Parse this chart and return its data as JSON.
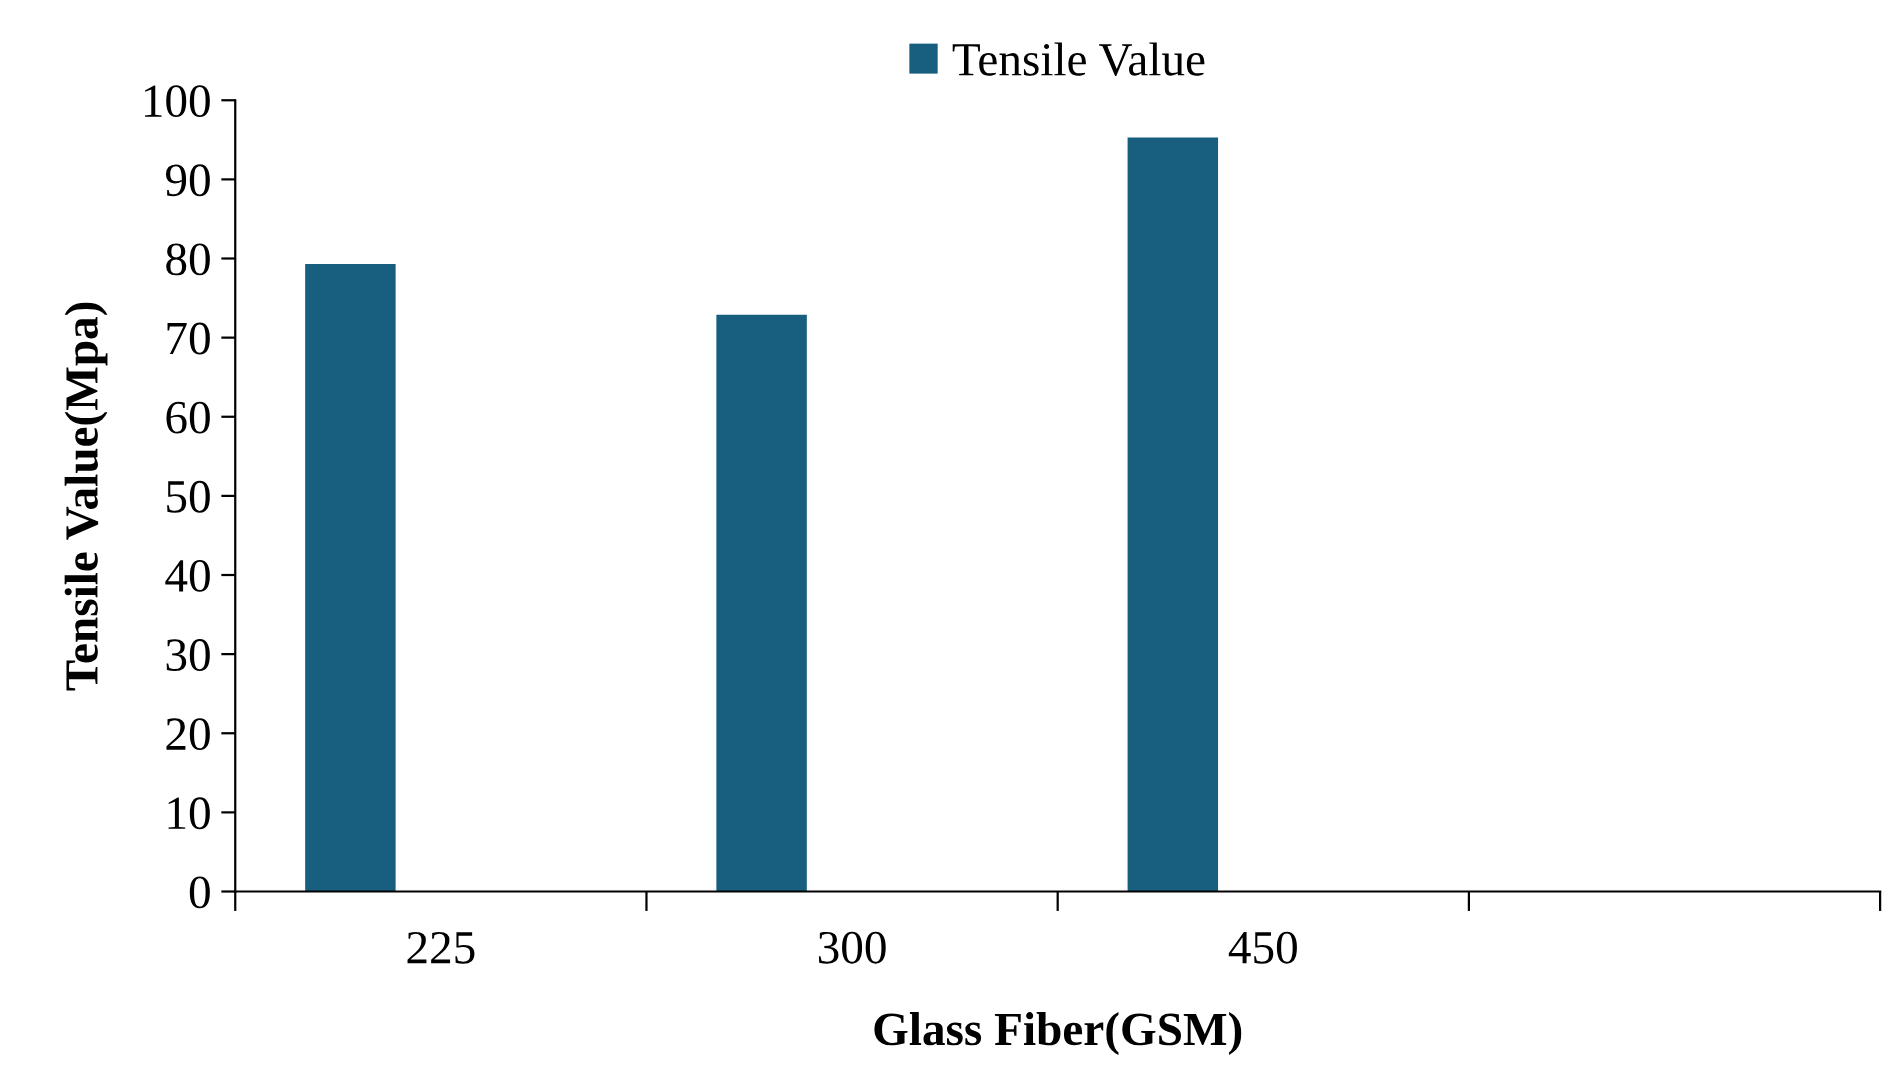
{
  "chart_data": {
    "type": "bar",
    "xlabel": "Glass Fiber(GSM)",
    "ylabel": "Tensile Value(Mpa)",
    "categories": [
      "225",
      "300",
      "450",
      null
    ],
    "series": [
      {
        "name": "Tensile Value",
        "color": "#175e7f",
        "values": [
          79.3,
          72.9,
          95.3,
          null
        ]
      }
    ],
    "ylim": [
      0,
      100
    ],
    "yticks": [
      0,
      10,
      20,
      30,
      40,
      50,
      60,
      70,
      80,
      90,
      100
    ],
    "grid": false,
    "legend": "top"
  }
}
